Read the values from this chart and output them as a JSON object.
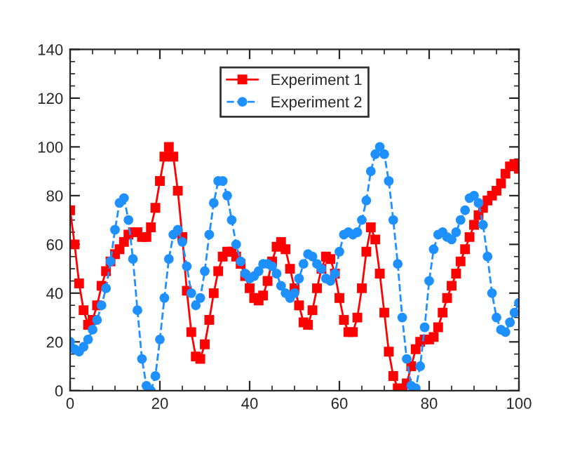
{
  "chart_data": {
    "type": "line",
    "x": [
      0,
      1,
      2,
      3,
      4,
      5,
      6,
      7,
      8,
      9,
      10,
      11,
      12,
      13,
      14,
      15,
      16,
      17,
      18,
      19,
      20,
      21,
      22,
      23,
      24,
      25,
      26,
      27,
      28,
      29,
      30,
      31,
      32,
      33,
      34,
      35,
      36,
      37,
      38,
      39,
      40,
      41,
      42,
      43,
      44,
      45,
      46,
      47,
      48,
      49,
      50,
      51,
      52,
      53,
      54,
      55,
      56,
      57,
      58,
      59,
      60,
      61,
      62,
      63,
      64,
      65,
      66,
      67,
      68,
      69,
      70,
      71,
      72,
      73,
      74,
      75,
      76,
      77,
      78,
      79,
      80,
      81,
      82,
      83,
      84,
      85,
      86,
      87,
      88,
      89,
      90,
      91,
      92,
      93,
      94,
      95,
      96,
      97,
      98,
      99,
      100
    ],
    "series": [
      {
        "name": "Experiment 1",
        "color": "#ff0000",
        "marker": "square",
        "line_style": "solid",
        "values": [
          74,
          60,
          44,
          33,
          27,
          29,
          35,
          43,
          49,
          53,
          56,
          58,
          61,
          64,
          65,
          65,
          63,
          63,
          67,
          75,
          86,
          96,
          100,
          96,
          82,
          63,
          41,
          24,
          14,
          13,
          19,
          29,
          40,
          49,
          55,
          57,
          57,
          55,
          52,
          47,
          42,
          38,
          37,
          39,
          45,
          53,
          59,
          61,
          58,
          50,
          42,
          35,
          28,
          27,
          33,
          42,
          50,
          55,
          54,
          48,
          38,
          29,
          24,
          24,
          30,
          42,
          57,
          67,
          62,
          48,
          32,
          16,
          6,
          1,
          0,
          3,
          10,
          17,
          20,
          21,
          21,
          22,
          26,
          32,
          38,
          43,
          48,
          53,
          58,
          63,
          68,
          72,
          75,
          78,
          80,
          82,
          85,
          89,
          92,
          93,
          91
        ]
      },
      {
        "name": "Experiment 2",
        "color": "#1e90ff",
        "marker": "circle",
        "line_style": "dashed",
        "values": [
          20,
          17,
          16,
          18,
          21,
          25,
          29,
          35,
          42,
          53,
          66,
          77,
          79,
          70,
          54,
          33,
          13,
          2,
          0,
          6,
          21,
          38,
          54,
          64,
          66,
          61,
          51,
          40,
          35,
          38,
          49,
          64,
          77,
          86,
          86,
          80,
          70,
          60,
          53,
          48,
          46,
          47,
          49,
          52,
          52,
          51,
          48,
          43,
          40,
          38,
          40,
          46,
          52,
          56,
          55,
          52,
          50,
          46,
          45,
          48,
          57,
          64,
          65,
          64,
          65,
          70,
          78,
          90,
          97,
          100,
          97,
          86,
          70,
          52,
          30,
          13,
          2,
          1,
          10,
          26,
          45,
          58,
          64,
          65,
          63,
          62,
          65,
          70,
          74,
          79,
          80,
          77,
          68,
          55,
          40,
          30,
          25,
          24,
          28,
          32,
          36
        ]
      }
    ],
    "xlim": [
      0,
      100
    ],
    "xticks": [
      0,
      20,
      40,
      60,
      80,
      100
    ],
    "ylim": [
      0,
      140
    ],
    "yticks": [
      0,
      20,
      40,
      60,
      80,
      100,
      120,
      140
    ],
    "grid": false,
    "legend": "top"
  }
}
